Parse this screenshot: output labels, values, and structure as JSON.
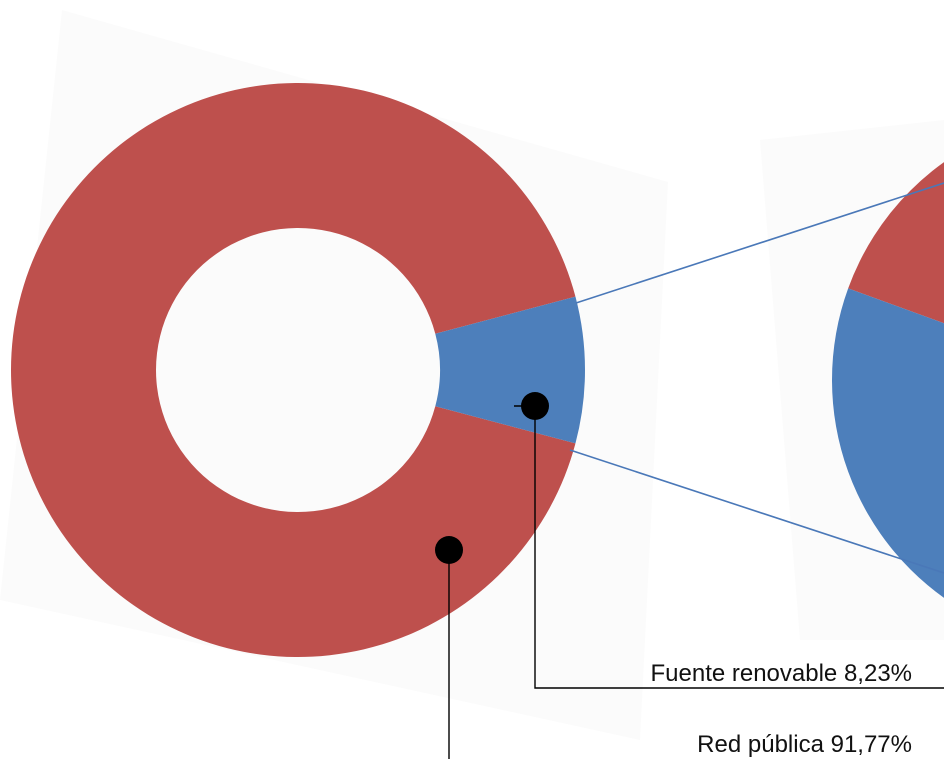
{
  "chart_data": {
    "type": "pie",
    "variant": "donut-with-zoom",
    "title": "",
    "slices": [
      {
        "name": "Red pública",
        "value": 91.77,
        "label": "Red pública   91,77%",
        "color": "#be504d"
      },
      {
        "name": "Fuente renovable",
        "value": 8.23,
        "label": "Fuente renovable  8,23%",
        "color": "#4d7fbb"
      }
    ],
    "legend": "none",
    "annotations": "leader lines with dot markers to labels at bottom-right"
  },
  "colors": {
    "red": "#be504d",
    "blue": "#4d7fbb",
    "connector": "#4a78b8",
    "leader": "#000000"
  }
}
